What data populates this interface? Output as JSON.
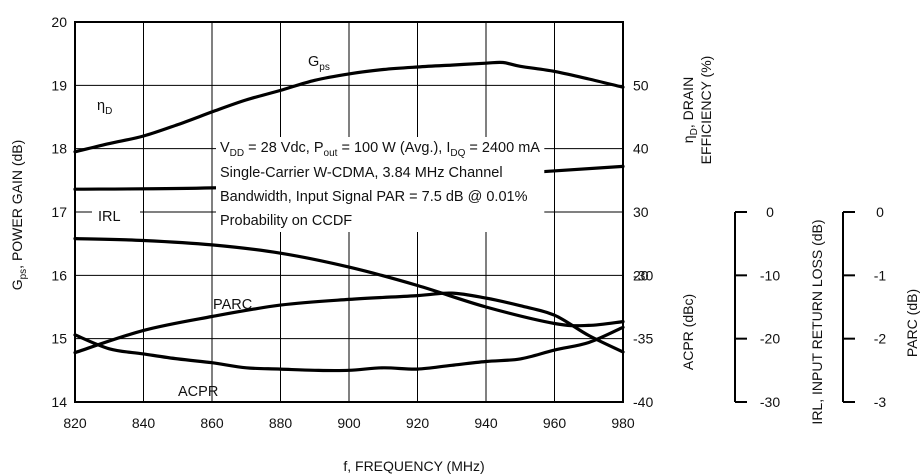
{
  "chart_data": {
    "type": "line",
    "x_axis": {
      "label": "f, FREQUENCY (MHz)",
      "range": [
        820,
        980
      ],
      "ticks": [
        820,
        840,
        860,
        880,
        900,
        920,
        940,
        960,
        980
      ]
    },
    "y_left": {
      "label": "G",
      "label_sub": "ps",
      "label_rest": ", POWER GAIN (dB)",
      "range": [
        14,
        20
      ],
      "ticks": [
        14,
        15,
        16,
        17,
        18,
        19,
        20
      ]
    },
    "y_right_1": {
      "label_top_1": "η",
      "label_top_sub": "D",
      "label_top_rest": ", DRAIN",
      "label_top_2": "EFFICIENCY (%)",
      "label_bottom": "ACPR (dBc)",
      "ticks_top": [
        20,
        30,
        40,
        50
      ],
      "ticks_bottom": [
        -40,
        -35,
        -30
      ]
    },
    "y_right_2": {
      "label": "IRL, INPUT RETURN LOSS (dB)",
      "ticks": [
        0,
        -10,
        -20,
        -30
      ]
    },
    "y_right_3": {
      "label": "PARC (dB)",
      "ticks": [
        0,
        -1,
        -2,
        -3
      ]
    },
    "grid": true,
    "annotation": {
      "line1_a": "V",
      "line1_a_sub": "DD",
      "line1_b": " = 28 Vdc, P",
      "line1_b_sub": "out",
      "line1_c": " = 100 W (Avg.), I",
      "line1_c_sub": "DQ",
      "line1_d": " = 2400 mA",
      "line2": "Single-Carrier W-CDMA, 3.84 MHz Channel",
      "line3": "Bandwidth, Input Signal PAR = 7.5 dB @ 0.01%",
      "line4": "Probability on CCDF"
    },
    "series": [
      {
        "name": "G",
        "name_sub": "ps",
        "axis": "y_left_dB",
        "x": [
          820,
          830,
          840,
          850,
          860,
          870,
          880,
          890,
          900,
          910,
          920,
          930,
          940,
          945,
          950,
          960,
          970,
          980
        ],
        "y": [
          17.95,
          18.08,
          18.2,
          18.38,
          18.58,
          18.77,
          18.92,
          19.08,
          19.18,
          19.25,
          19.29,
          19.32,
          19.35,
          19.36,
          19.3,
          19.22,
          19.1,
          18.97
        ]
      },
      {
        "name": "η",
        "name_sub": "D",
        "axis": "drain_efficiency_pct",
        "x": [
          820,
          860,
          900,
          940,
          980
        ],
        "y": [
          33.6,
          33.8,
          34.6,
          35.8,
          37.2
        ]
      },
      {
        "name": "IRL",
        "axis": "irl_dB",
        "x": [
          820,
          840,
          860,
          880,
          900,
          920,
          940,
          960,
          970,
          980
        ],
        "y": [
          -4.2,
          -4.5,
          -5.2,
          -6.5,
          -8.7,
          -11.6,
          -15.0,
          -17.6,
          -17.9,
          -17.3
        ]
      },
      {
        "name": "PARC",
        "axis": "parc_dB",
        "x": [
          820,
          840,
          860,
          880,
          900,
          920,
          930,
          940,
          950,
          960,
          970,
          980
        ],
        "y": [
          -2.22,
          -1.87,
          -1.65,
          -1.47,
          -1.38,
          -1.32,
          -1.28,
          -1.36,
          -1.48,
          -1.63,
          -1.95,
          -2.21
        ]
      },
      {
        "name": "ACPR",
        "axis": "acpr_dBc",
        "x": [
          820,
          830,
          840,
          850,
          860,
          870,
          880,
          890,
          900,
          910,
          920,
          930,
          940,
          950,
          960,
          970,
          980
        ],
        "y": [
          -34.7,
          -35.8,
          -36.2,
          -36.6,
          -36.9,
          -37.3,
          -37.4,
          -37.5,
          -37.5,
          -37.3,
          -37.4,
          -37.1,
          -36.8,
          -36.6,
          -35.9,
          -35.3,
          -34.1
        ]
      }
    ]
  }
}
